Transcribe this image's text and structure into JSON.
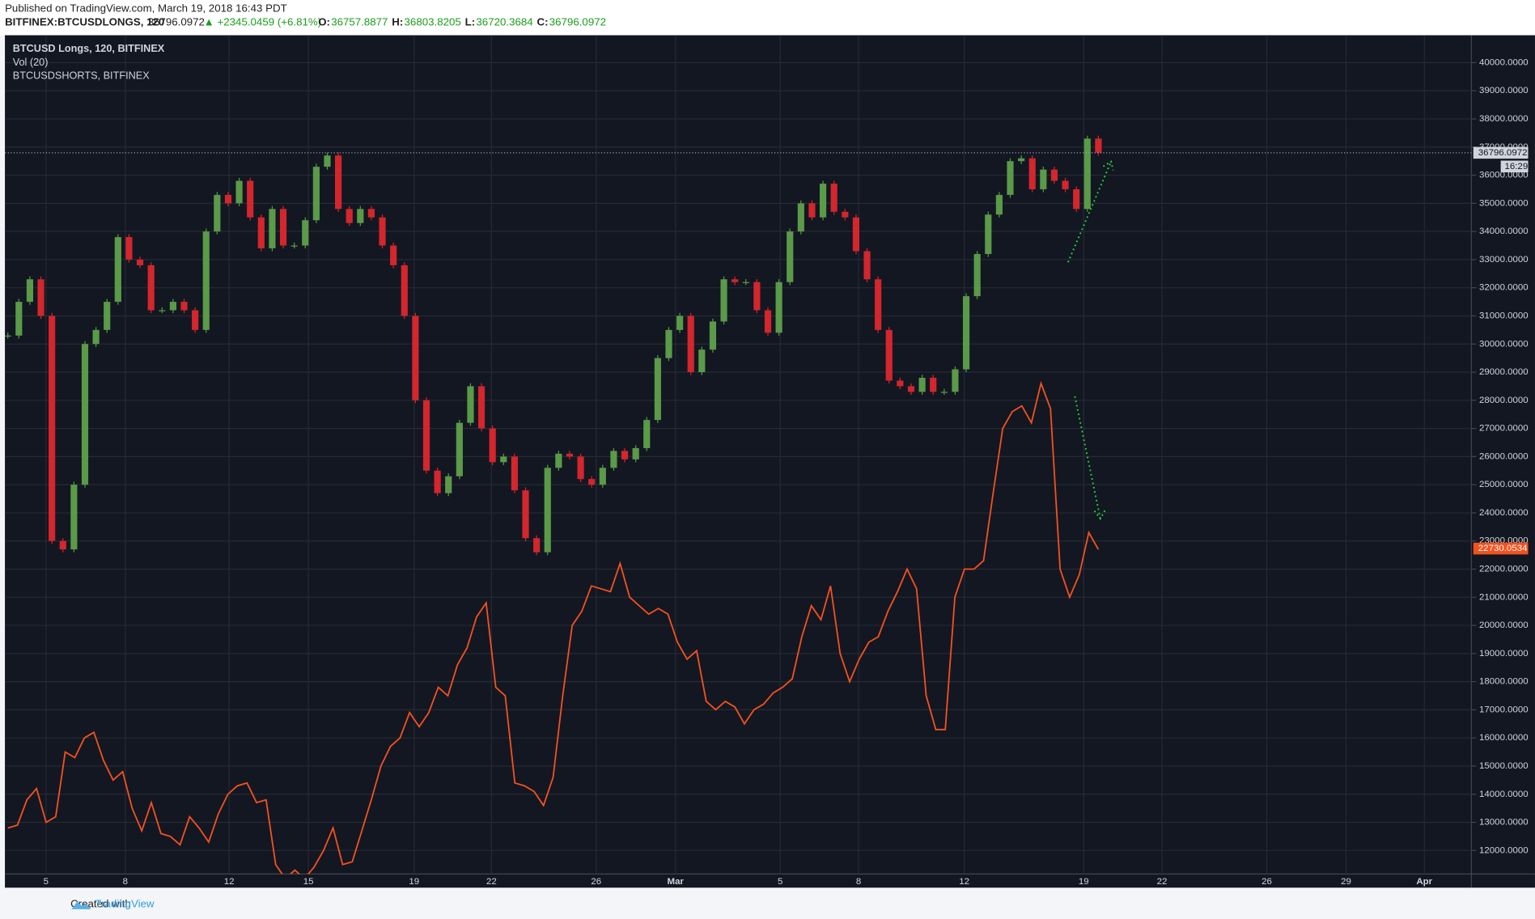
{
  "header": {
    "published": "Published on TradingView.com, March 19, 2018 16:43 PDT",
    "symbol": "BITFINEX:BTCUSDLONGS, 120",
    "price": "36796.0972",
    "change": "▲ +2345.0459 (+6.81%)",
    "ohlc": [
      {
        "label": "O:",
        "value": "36757.8877"
      },
      {
        "label": "H:",
        "value": "36803.8205"
      },
      {
        "label": "L:",
        "value": "36720.3684"
      },
      {
        "label": "C:",
        "value": "36796.0972"
      }
    ]
  },
  "footer": {
    "created": "Created with",
    "brand": "TradingView"
  },
  "chart_data": {
    "type": "candlestick",
    "indicator": "Vol (20)",
    "xticks": [
      "5",
      "8",
      "12",
      "15",
      "19",
      "22",
      "26",
      "Mar",
      "5",
      "8",
      "12",
      "19",
      "22",
      "26",
      "29",
      "Apr"
    ],
    "ylim": [
      11165,
      40974
    ],
    "yticks": [
      {
        "value": 12000,
        "label": "12000.0000"
      },
      {
        "value": 13000,
        "label": "13000.0000"
      },
      {
        "value": 14000,
        "label": "14000.0000"
      },
      {
        "value": 15000,
        "label": "15000.0000"
      },
      {
        "value": 16000,
        "label": "16000.0000"
      },
      {
        "value": 17000,
        "label": "17000.0000"
      },
      {
        "value": 18000,
        "label": "18000.0000"
      },
      {
        "value": 19000,
        "label": "19000.0000"
      },
      {
        "value": 20000,
        "label": "20000.0000"
      },
      {
        "value": 21000,
        "label": "21000.0000"
      },
      {
        "value": 22000,
        "label": "22000.0000"
      },
      {
        "value": 23000,
        "label": "23000.0000"
      },
      {
        "value": 24000,
        "label": "24000.0000"
      },
      {
        "value": 25000,
        "label": "25000.0000"
      },
      {
        "value": 26000,
        "label": "26000.0000"
      },
      {
        "value": 27000,
        "label": "27000.0000"
      },
      {
        "value": 28000,
        "label": "28000.0000"
      },
      {
        "value": 29000,
        "label": "29000.0000"
      },
      {
        "value": 30000,
        "label": "30000.0000"
      },
      {
        "value": 31000,
        "label": "31000.0000"
      },
      {
        "value": 32000,
        "label": "32000.0000"
      },
      {
        "value": 33000,
        "label": "33000.0000"
      },
      {
        "value": 34000,
        "label": "34000.0000"
      },
      {
        "value": 35000,
        "label": "35000.0000"
      },
      {
        "value": 36000,
        "label": "36000.0000"
      },
      {
        "value": 37000,
        "label": "37000.0000"
      },
      {
        "value": 38000,
        "label": "38000.0000"
      },
      {
        "value": 39000,
        "label": "39000.0000"
      },
      {
        "value": 40000,
        "label": "40000.0000"
      }
    ],
    "grid": true,
    "series": [
      {
        "name": "BTCUSD Longs, 120, BITFINEX",
        "type": "candlestick",
        "up_color": "#5a9a48",
        "down_color": "#d3262d",
        "last_value": 36796.0972,
        "last_time": "16:29",
        "values": [
          30300,
          31500,
          32300,
          31000,
          23000,
          22700,
          25000,
          30000,
          30500,
          31500,
          33800,
          33000,
          32800,
          31200,
          31200,
          31500,
          31200,
          30500,
          34000,
          35300,
          35000,
          35800,
          34500,
          33400,
          34800,
          33500,
          33500,
          34400,
          36300,
          36700,
          34800,
          34300,
          34800,
          34500,
          33500,
          32800,
          31000,
          28000,
          25500,
          24700,
          25300,
          27200,
          28500,
          27000,
          25800,
          26000,
          24800,
          23100,
          22600,
          25600,
          26100,
          26000,
          25200,
          25000,
          25600,
          26200,
          25900,
          26300,
          27300,
          29500,
          30500,
          31000,
          29000,
          29800,
          30800,
          32300,
          32200,
          32200,
          31200,
          30400,
          32200,
          34000,
          35000,
          34500,
          35700,
          34700,
          34500,
          33300,
          32300,
          30500,
          28700,
          28500,
          28300,
          28800,
          28300,
          28300,
          29100,
          31700,
          33200,
          34600,
          35300,
          36500,
          36600,
          35500,
          36200,
          35800,
          35500,
          34800,
          37300,
          36800
        ]
      },
      {
        "name": "BTCUSDSHORTS, BITFINEX",
        "type": "line",
        "color": "#f4511e",
        "last_value": 22730.0534,
        "values": [
          12800,
          12900,
          13800,
          14200,
          13000,
          13200,
          15500,
          15300,
          16000,
          16200,
          15200,
          14500,
          14800,
          13500,
          12700,
          13700,
          12600,
          12500,
          12200,
          13200,
          12800,
          12300,
          13300,
          14000,
          14300,
          14400,
          13700,
          13800,
          11500,
          11000,
          11300,
          11000,
          11400,
          12000,
          12800,
          11500,
          11600,
          12700,
          13800,
          15000,
          15700,
          16000,
          16900,
          16400,
          16900,
          17800,
          17500,
          18600,
          19200,
          20300,
          20800,
          17800,
          17500,
          14400,
          14300,
          14100,
          13600,
          14600,
          17500,
          20000,
          20500,
          21400,
          21300,
          21200,
          22200,
          21000,
          20700,
          20400,
          20600,
          20400,
          19400,
          18800,
          19100,
          17300,
          17000,
          17300,
          17100,
          16500,
          17000,
          17200,
          17600,
          17800,
          18100,
          19600,
          20700,
          20200,
          21400,
          19000,
          18000,
          18800,
          19400,
          19600,
          20500,
          21200,
          22000,
          21300,
          17500,
          16300,
          16300,
          21000,
          22000,
          22000,
          22300,
          24700,
          27000,
          27600,
          27800,
          27200,
          28600,
          27700,
          22000,
          21000,
          21800,
          23300,
          22700
        ]
      }
    ]
  }
}
